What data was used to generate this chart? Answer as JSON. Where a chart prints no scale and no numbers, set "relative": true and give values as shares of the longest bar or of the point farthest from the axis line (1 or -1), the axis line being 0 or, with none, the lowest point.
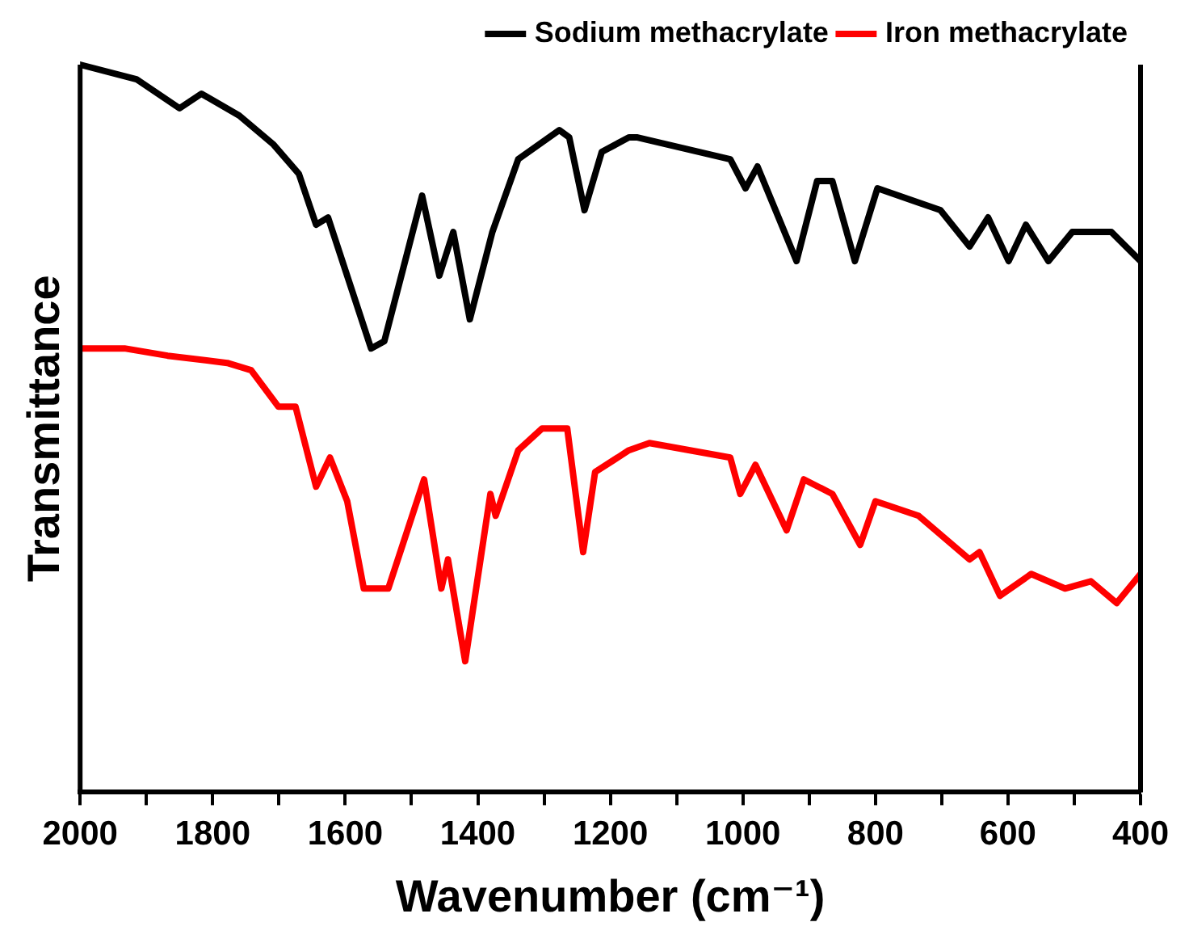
{
  "chart_data": {
    "type": "line",
    "relative": true,
    "xlabel": "Wavenumber (cm⁻¹)",
    "ylabel": "Transmittance",
    "xlim": [
      2000,
      400
    ],
    "xticks": [
      2000,
      {
        "value": 1900,
        "label": null
      },
      1800,
      {
        "value": 1700,
        "label": null
      },
      1600,
      {
        "value": 1500,
        "label": null
      },
      1400,
      {
        "value": 1300,
        "label": null
      },
      1200,
      {
        "value": 1100,
        "label": null
      },
      1000,
      {
        "value": 900,
        "label": null
      },
      800,
      {
        "value": 700,
        "label": null
      },
      600,
      {
        "value": 500,
        "label": null
      },
      400
    ],
    "legend": "top right",
    "marker": "none",
    "line_style": "solid",
    "series": [
      {
        "name": "Sodium methacrylate",
        "color": "#000000",
        "x": [
          2000,
          1915,
          1850,
          1817,
          1760,
          1708,
          1670,
          1644,
          1626,
          1561,
          1541,
          1484,
          1458,
          1437,
          1412,
          1378,
          1339,
          1277,
          1262,
          1239,
          1213,
          1172,
          1159,
          1019,
          996,
          978,
          919,
          888,
          865,
          831,
          797,
          702,
          658,
          630,
          599,
          573,
          539,
          503,
          444,
          400
        ],
        "values": [
          1.0,
          0.98,
          0.94,
          0.96,
          0.93,
          0.89,
          0.85,
          0.78,
          0.79,
          0.61,
          0.62,
          0.82,
          0.71,
          0.77,
          0.65,
          0.77,
          0.87,
          0.91,
          0.9,
          0.8,
          0.88,
          0.9,
          0.9,
          0.87,
          0.83,
          0.86,
          0.73,
          0.84,
          0.84,
          0.73,
          0.83,
          0.8,
          0.75,
          0.79,
          0.73,
          0.78,
          0.73,
          0.77,
          0.77,
          0.73
        ]
      },
      {
        "name": "Iron methacrylate",
        "color": "#ff0000",
        "x": [
          2000,
          1933,
          1868,
          1778,
          1742,
          1701,
          1675,
          1644,
          1623,
          1597,
          1572,
          1535,
          1481,
          1455,
          1445,
          1419,
          1381,
          1373,
          1339,
          1303,
          1265,
          1241,
          1223,
          1172,
          1141,
          1019,
          1004,
          981,
          934,
          908,
          865,
          823,
          800,
          735,
          658,
          643,
          612,
          565,
          514,
          475,
          436,
          400
        ],
        "values": [
          0.61,
          0.61,
          0.6,
          0.59,
          0.58,
          0.53,
          0.53,
          0.42,
          0.46,
          0.4,
          0.28,
          0.28,
          0.43,
          0.28,
          0.32,
          0.18,
          0.41,
          0.38,
          0.47,
          0.5,
          0.5,
          0.33,
          0.44,
          0.47,
          0.48,
          0.46,
          0.41,
          0.45,
          0.36,
          0.43,
          0.41,
          0.34,
          0.4,
          0.38,
          0.32,
          0.33,
          0.27,
          0.3,
          0.28,
          0.29,
          0.26,
          0.3
        ]
      }
    ]
  }
}
